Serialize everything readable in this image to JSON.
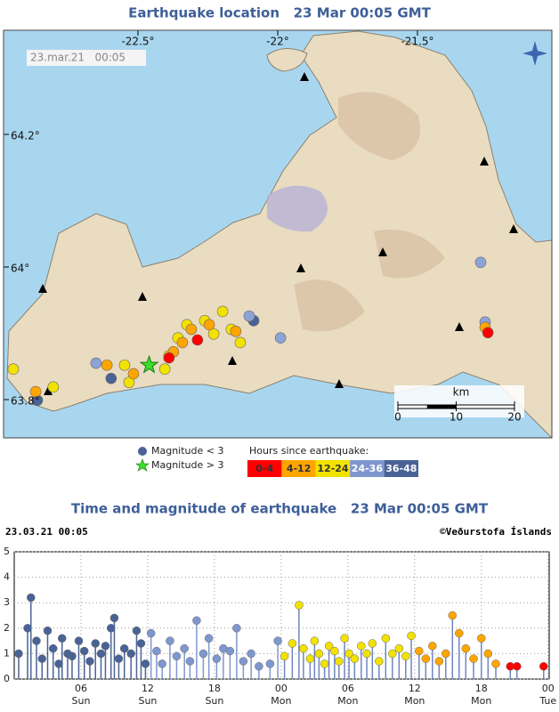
{
  "header": {
    "map_title": "Earthquake location   23 Mar 00:05 GMT",
    "chart_title": "Time and magnitude of earthquake   23 Mar 00:05 GMT"
  },
  "map": {
    "timestamp": "23.mar.21   00:05",
    "lon_ticks": [
      {
        "value": -22.5,
        "label": "-22.5°"
      },
      {
        "value": -22,
        "label": "-22°"
      },
      {
        "value": -21.5,
        "label": "-21.5°"
      }
    ],
    "lat_ticks": [
      {
        "value": 64.2,
        "label": "64.2°"
      },
      {
        "value": 64,
        "label": "64°"
      },
      {
        "value": 63.8,
        "label": "63.8°"
      }
    ],
    "km_scale": {
      "label": "km",
      "ticks": [
        0,
        10,
        20
      ]
    },
    "legend": {
      "small": "Magnitude < 3",
      "large": "Magnitude > 3",
      "hours_title": "Hours since earthquake:"
    },
    "large_quake": {
      "lon": -22.46,
      "lat": 63.852
    },
    "quakes": [
      {
        "color": "#4a6396",
        "lon": [
          -22.086,
          -22.86,
          -22.596
        ],
        "lat": [
          63.919,
          63.799,
          63.832
        ]
      },
      {
        "color": "#8ca3d6",
        "lon": [
          -22.102,
          -21.99,
          -22.65,
          -21.274,
          -21.258
        ],
        "lat": [
          63.926,
          63.893,
          63.855,
          64.007,
          63.917
        ]
      },
      {
        "color": "#f2e200",
        "lon": [
          -22.325,
          -22.261,
          -22.197,
          -22.166,
          -22.357,
          -22.389,
          -22.404,
          -22.229,
          -22.134,
          -22.946,
          -22.803,
          -22.532,
          -22.548
        ],
        "lat": [
          63.913,
          63.919,
          63.933,
          63.906,
          63.893,
          63.866,
          63.846,
          63.899,
          63.886,
          63.846,
          63.819,
          63.826,
          63.852
        ]
      },
      {
        "color": "#ffa500",
        "lon": [
          -22.373,
          -22.341,
          -22.309,
          -22.245,
          -22.866,
          -22.611,
          -22.516,
          -22.15,
          -21.258
        ],
        "lat": [
          63.872,
          63.886,
          63.906,
          63.913,
          63.812,
          63.852,
          63.839,
          63.903,
          63.909
        ]
      },
      {
        "color": "#ff0000",
        "lon": [
          -22.287,
          -22.389,
          -21.248
        ],
        "lat": [
          63.89,
          63.863,
          63.901
        ]
      }
    ]
  },
  "chart_data": {
    "type": "stem",
    "date_label": "23.03.21 00:05",
    "credit": "©Veðurstofa Íslands",
    "xlim": [
      0,
      48.1
    ],
    "ylim": [
      0,
      5
    ],
    "yticks": [
      0,
      1,
      2,
      3,
      4,
      5
    ],
    "xticks": [
      {
        "value": 6,
        "label": "06"
      },
      {
        "value": 12,
        "label": "12"
      },
      {
        "value": 18,
        "label": "18"
      },
      {
        "value": 24,
        "label": "00"
      },
      {
        "value": 30,
        "label": "06"
      },
      {
        "value": 36,
        "label": "12"
      },
      {
        "value": 42,
        "label": "18"
      },
      {
        "value": 48,
        "label": "00"
      }
    ],
    "xtick_days": [
      "Sun",
      "Sun",
      "Sun",
      "Mon",
      "Mon",
      "Mon",
      "Mon",
      "Tue"
    ],
    "grid": true,
    "series": [
      {
        "name": "36-48",
        "color": "#4a6396",
        "x": [
          0.4,
          1.2,
          1.5,
          2.0,
          2.5,
          3.0,
          3.5,
          4.0,
          4.3,
          4.8,
          5.2,
          5.8,
          6.3,
          6.8,
          7.3,
          7.8,
          8.2,
          8.7,
          9.0,
          9.4,
          9.9,
          10.5,
          11.0,
          11.4,
          11.8
        ],
        "values": [
          1.0,
          2.0,
          3.2,
          1.5,
          0.8,
          1.9,
          1.2,
          0.6,
          1.6,
          1.0,
          0.9,
          1.5,
          1.1,
          0.7,
          1.4,
          1.0,
          1.3,
          2.0,
          2.4,
          0.8,
          1.2,
          1.0,
          1.9,
          1.4,
          0.6
        ]
      },
      {
        "name": "24-36",
        "color": "#7f97cf",
        "x": [
          12.3,
          12.8,
          13.3,
          14.0,
          14.6,
          15.3,
          15.8,
          16.4,
          17.0,
          17.5,
          18.2,
          18.8,
          19.4,
          20.0,
          20.6,
          21.3,
          22.0,
          23.0,
          23.7
        ],
        "values": [
          1.8,
          1.1,
          0.6,
          1.5,
          0.9,
          1.2,
          0.7,
          2.3,
          1.0,
          1.6,
          0.8,
          1.2,
          1.1,
          2.0,
          0.7,
          1.0,
          0.5,
          0.6,
          1.5
        ]
      },
      {
        "name": "12-24",
        "color": "#f2e200",
        "x": [
          24.3,
          25.0,
          25.6,
          26.0,
          26.6,
          27.0,
          27.4,
          27.9,
          28.3,
          28.8,
          29.2,
          29.7,
          30.1,
          30.6,
          31.2,
          31.7,
          32.2,
          32.8,
          33.4,
          34.0,
          34.6,
          35.2,
          35.7
        ],
        "values": [
          0.9,
          1.4,
          2.9,
          1.2,
          0.8,
          1.5,
          1.0,
          0.6,
          1.3,
          1.1,
          0.7,
          1.6,
          1.0,
          0.8,
          1.3,
          1.0,
          1.4,
          0.7,
          1.6,
          1.0,
          1.2,
          0.9,
          1.7
        ]
      },
      {
        "name": "4-12",
        "color": "#ffa500",
        "x": [
          36.4,
          37.0,
          37.6,
          38.2,
          38.8,
          39.4,
          40.0,
          40.6,
          41.3,
          42.0,
          42.6,
          43.3
        ],
        "values": [
          1.1,
          0.8,
          1.3,
          0.7,
          1.0,
          2.5,
          1.8,
          1.2,
          0.8,
          1.6,
          1.0,
          0.6
        ]
      },
      {
        "name": "0-4",
        "color": "#ff0000",
        "x": [
          44.6,
          45.2,
          47.6
        ],
        "values": [
          0.5,
          0.5,
          0.5
        ]
      }
    ]
  }
}
